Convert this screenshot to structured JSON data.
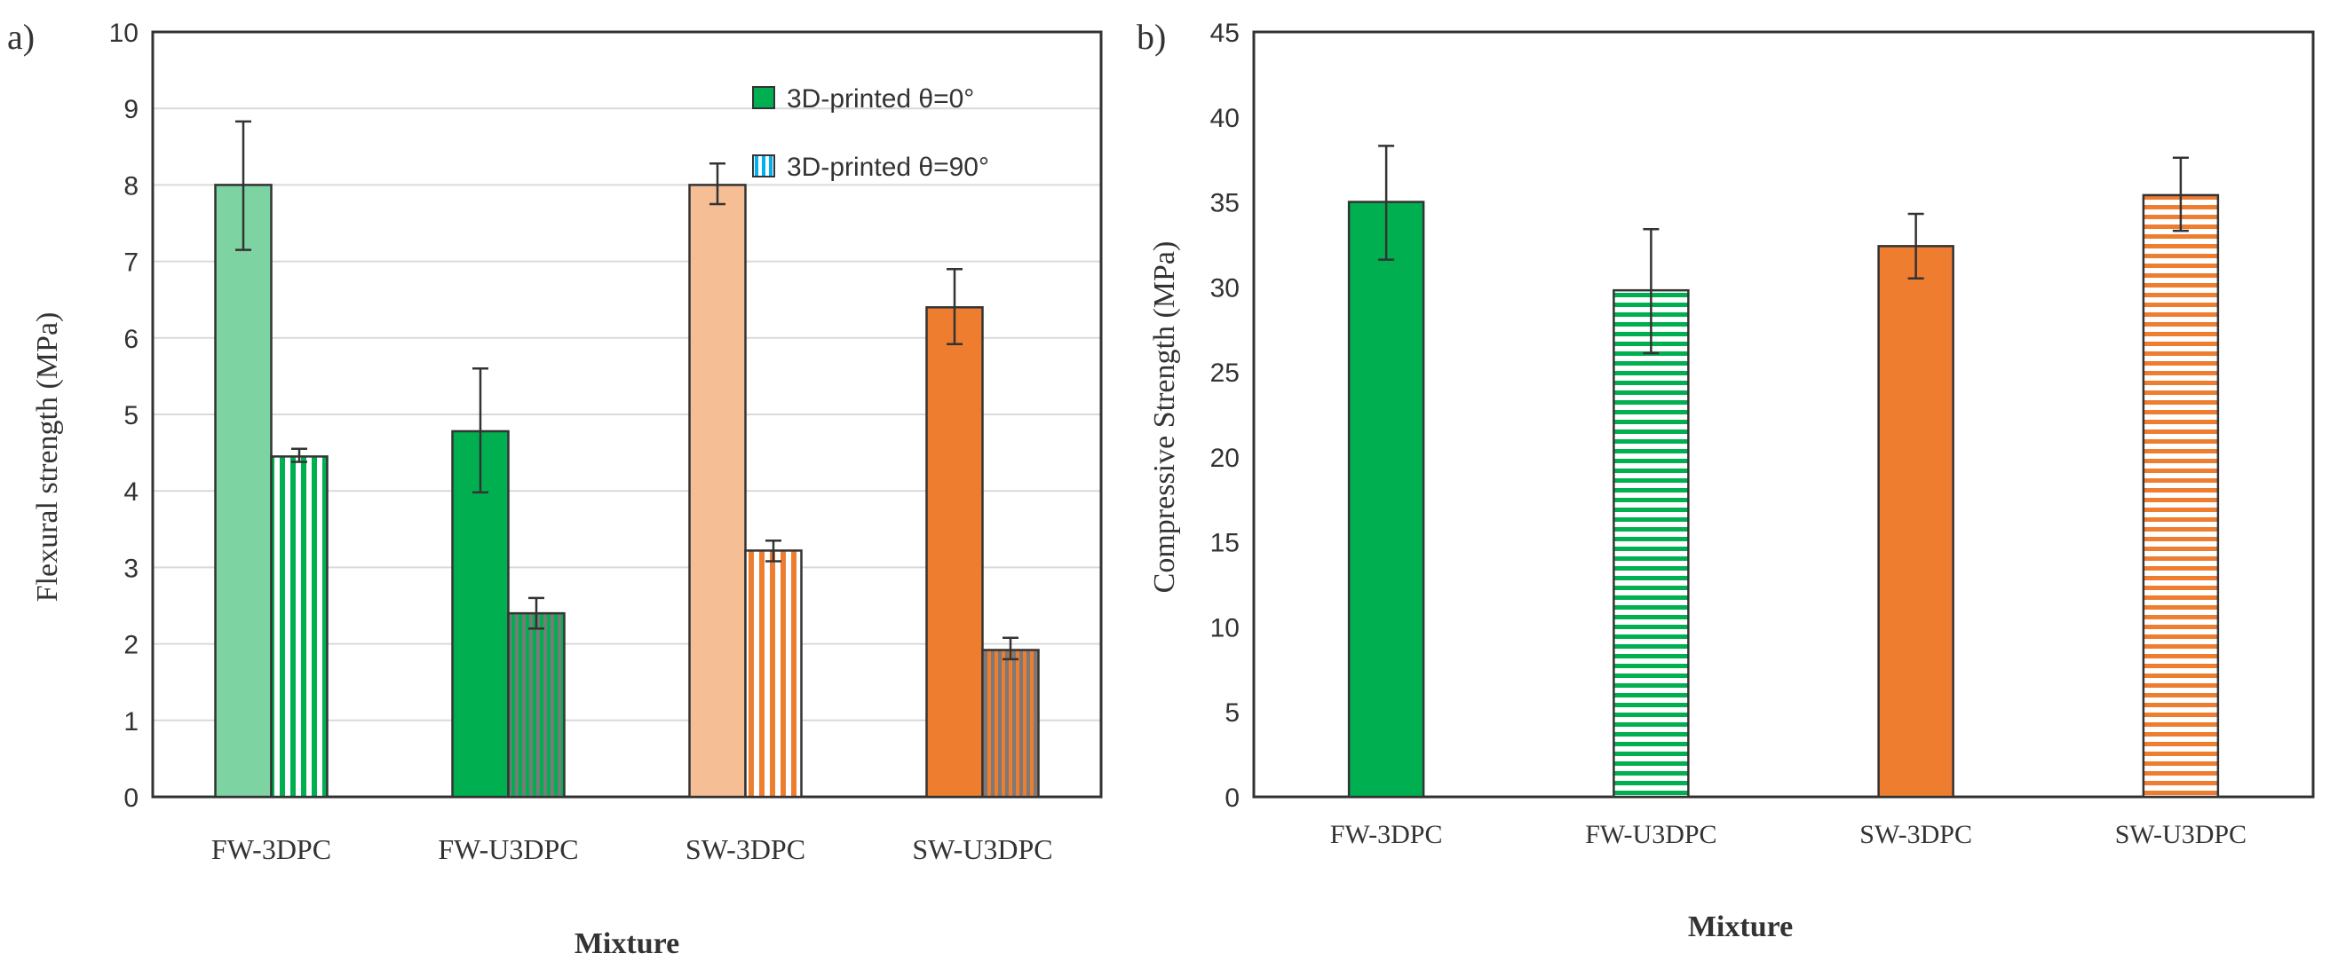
{
  "colors": {
    "fw_light": "#7dd3a2",
    "fw_dark": "#00b050",
    "sw_light": "#f6be95",
    "sw_dark": "#ee7d30",
    "hatch_bg": "#ffffff",
    "outline": "#333333",
    "frame": "#333333",
    "grid": "#d9d9d9",
    "error": "#333333"
  },
  "chart_data": [
    {
      "panel_label": "a)",
      "type": "bar",
      "xlabel": "Mixture",
      "ylabel": "Flexural strength (MPa)",
      "ylim": [
        0,
        10
      ],
      "yticks": [
        "0",
        "1",
        "2",
        "3",
        "4",
        "5",
        "6",
        "7",
        "8",
        "9",
        "10"
      ],
      "grid": true,
      "legend": {
        "placement": "top-right",
        "entries": [
          "3D-printed θ=0°",
          "3D-printed θ=90°"
        ]
      },
      "categories": [
        "FW-3DPC",
        "FW-U3DPC",
        "SW-3DPC",
        "SW-U3DPC"
      ],
      "bars": [
        {
          "category": "FW-3DPC",
          "series": "3D-printed θ=0°",
          "value": 8.0,
          "err_low": 7.15,
          "err_high": 8.83,
          "fill": "fw_light",
          "pattern": "solid"
        },
        {
          "category": "FW-3DPC",
          "series": "3D-printed θ=90°",
          "value": 4.45,
          "err_low": 4.38,
          "err_high": 4.55,
          "fill": "fw_dark",
          "pattern": "vertical"
        },
        {
          "category": "FW-U3DPC",
          "series": "3D-printed θ=0°",
          "value": 4.78,
          "err_low": 3.98,
          "err_high": 5.6,
          "fill": "fw_dark",
          "pattern": "solid"
        },
        {
          "category": "FW-U3DPC",
          "series": "3D-printed θ=90°",
          "value": 2.4,
          "err_low": 2.2,
          "err_high": 2.6,
          "fill": "fw_dark",
          "pattern": "vertical-dense"
        },
        {
          "category": "SW-3DPC",
          "series": "3D-printed θ=0°",
          "value": 8.0,
          "err_low": 7.75,
          "err_high": 8.28,
          "fill": "sw_light",
          "pattern": "solid"
        },
        {
          "category": "SW-3DPC",
          "series": "3D-printed θ=90°",
          "value": 3.22,
          "err_low": 3.08,
          "err_high": 3.35,
          "fill": "sw_dark",
          "pattern": "vertical"
        },
        {
          "category": "SW-U3DPC",
          "series": "3D-printed θ=0°",
          "value": 6.4,
          "err_low": 5.92,
          "err_high": 6.9,
          "fill": "sw_dark",
          "pattern": "solid"
        },
        {
          "category": "SW-U3DPC",
          "series": "3D-printed θ=90°",
          "value": 1.92,
          "err_low": 1.8,
          "err_high": 2.08,
          "fill": "sw_dark",
          "pattern": "vertical-dense"
        }
      ]
    },
    {
      "panel_label": "b)",
      "type": "bar",
      "xlabel": "Mixture",
      "ylabel": "Compressive Strength (MPa)",
      "ylim": [
        0,
        45
      ],
      "yticks": [
        "0",
        "5",
        "10",
        "15",
        "20",
        "25",
        "30",
        "35",
        "40",
        "45"
      ],
      "grid": false,
      "categories": [
        "FW-3DPC",
        "FW-U3DPC",
        "SW-3DPC",
        "SW-U3DPC"
      ],
      "bars": [
        {
          "category": "FW-3DPC",
          "value": 35.0,
          "err_low": 31.6,
          "err_high": 38.3,
          "fill": "fw_dark",
          "pattern": "solid"
        },
        {
          "category": "FW-U3DPC",
          "value": 29.8,
          "err_low": 26.1,
          "err_high": 33.4,
          "fill": "fw_dark",
          "pattern": "horizontal"
        },
        {
          "category": "SW-3DPC",
          "value": 32.4,
          "err_low": 30.5,
          "err_high": 34.3,
          "fill": "sw_dark",
          "pattern": "solid"
        },
        {
          "category": "SW-U3DPC",
          "value": 35.4,
          "err_low": 33.3,
          "err_high": 37.6,
          "fill": "sw_dark",
          "pattern": "horizontal"
        }
      ]
    }
  ]
}
